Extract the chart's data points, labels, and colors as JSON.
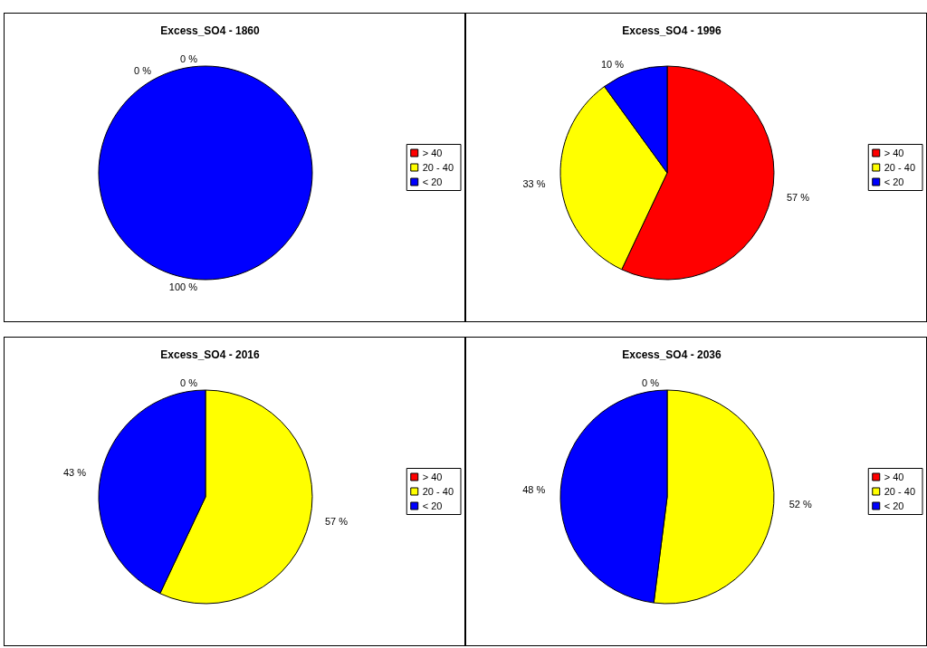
{
  "chart_data": [
    {
      "type": "pie",
      "title": "Excess_SO4 - 1860",
      "categories": [
        "> 40",
        "20 - 40",
        "< 20"
      ],
      "values": [
        0,
        0,
        100
      ],
      "value_labels": [
        "0 %",
        "0 %",
        "100 %"
      ],
      "colors": [
        "#ff0000",
        "#ffff00",
        "#0000ff"
      ],
      "legend": "right"
    },
    {
      "type": "pie",
      "title": "Excess_SO4 - 1996",
      "categories": [
        "> 40",
        "20 - 40",
        "< 20"
      ],
      "values": [
        57,
        33,
        10
      ],
      "value_labels": [
        "57 %",
        "33 %",
        "10 %"
      ],
      "colors": [
        "#ff0000",
        "#ffff00",
        "#0000ff"
      ],
      "legend": "right"
    },
    {
      "type": "pie",
      "title": "Excess_SO4 - 2016",
      "categories": [
        "> 40",
        "20 - 40",
        "< 20"
      ],
      "values": [
        0,
        57,
        43
      ],
      "value_labels": [
        "0 %",
        "57 %",
        "43 %"
      ],
      "colors": [
        "#ff0000",
        "#ffff00",
        "#0000ff"
      ],
      "legend": "right"
    },
    {
      "type": "pie",
      "title": "Excess_SO4 - 2036",
      "categories": [
        "> 40",
        "20 - 40",
        "< 20"
      ],
      "values": [
        0,
        52,
        48
      ],
      "value_labels": [
        "0 %",
        "52 %",
        "48 %"
      ],
      "colors": [
        "#ff0000",
        "#ffff00",
        "#0000ff"
      ],
      "legend": "right"
    }
  ]
}
